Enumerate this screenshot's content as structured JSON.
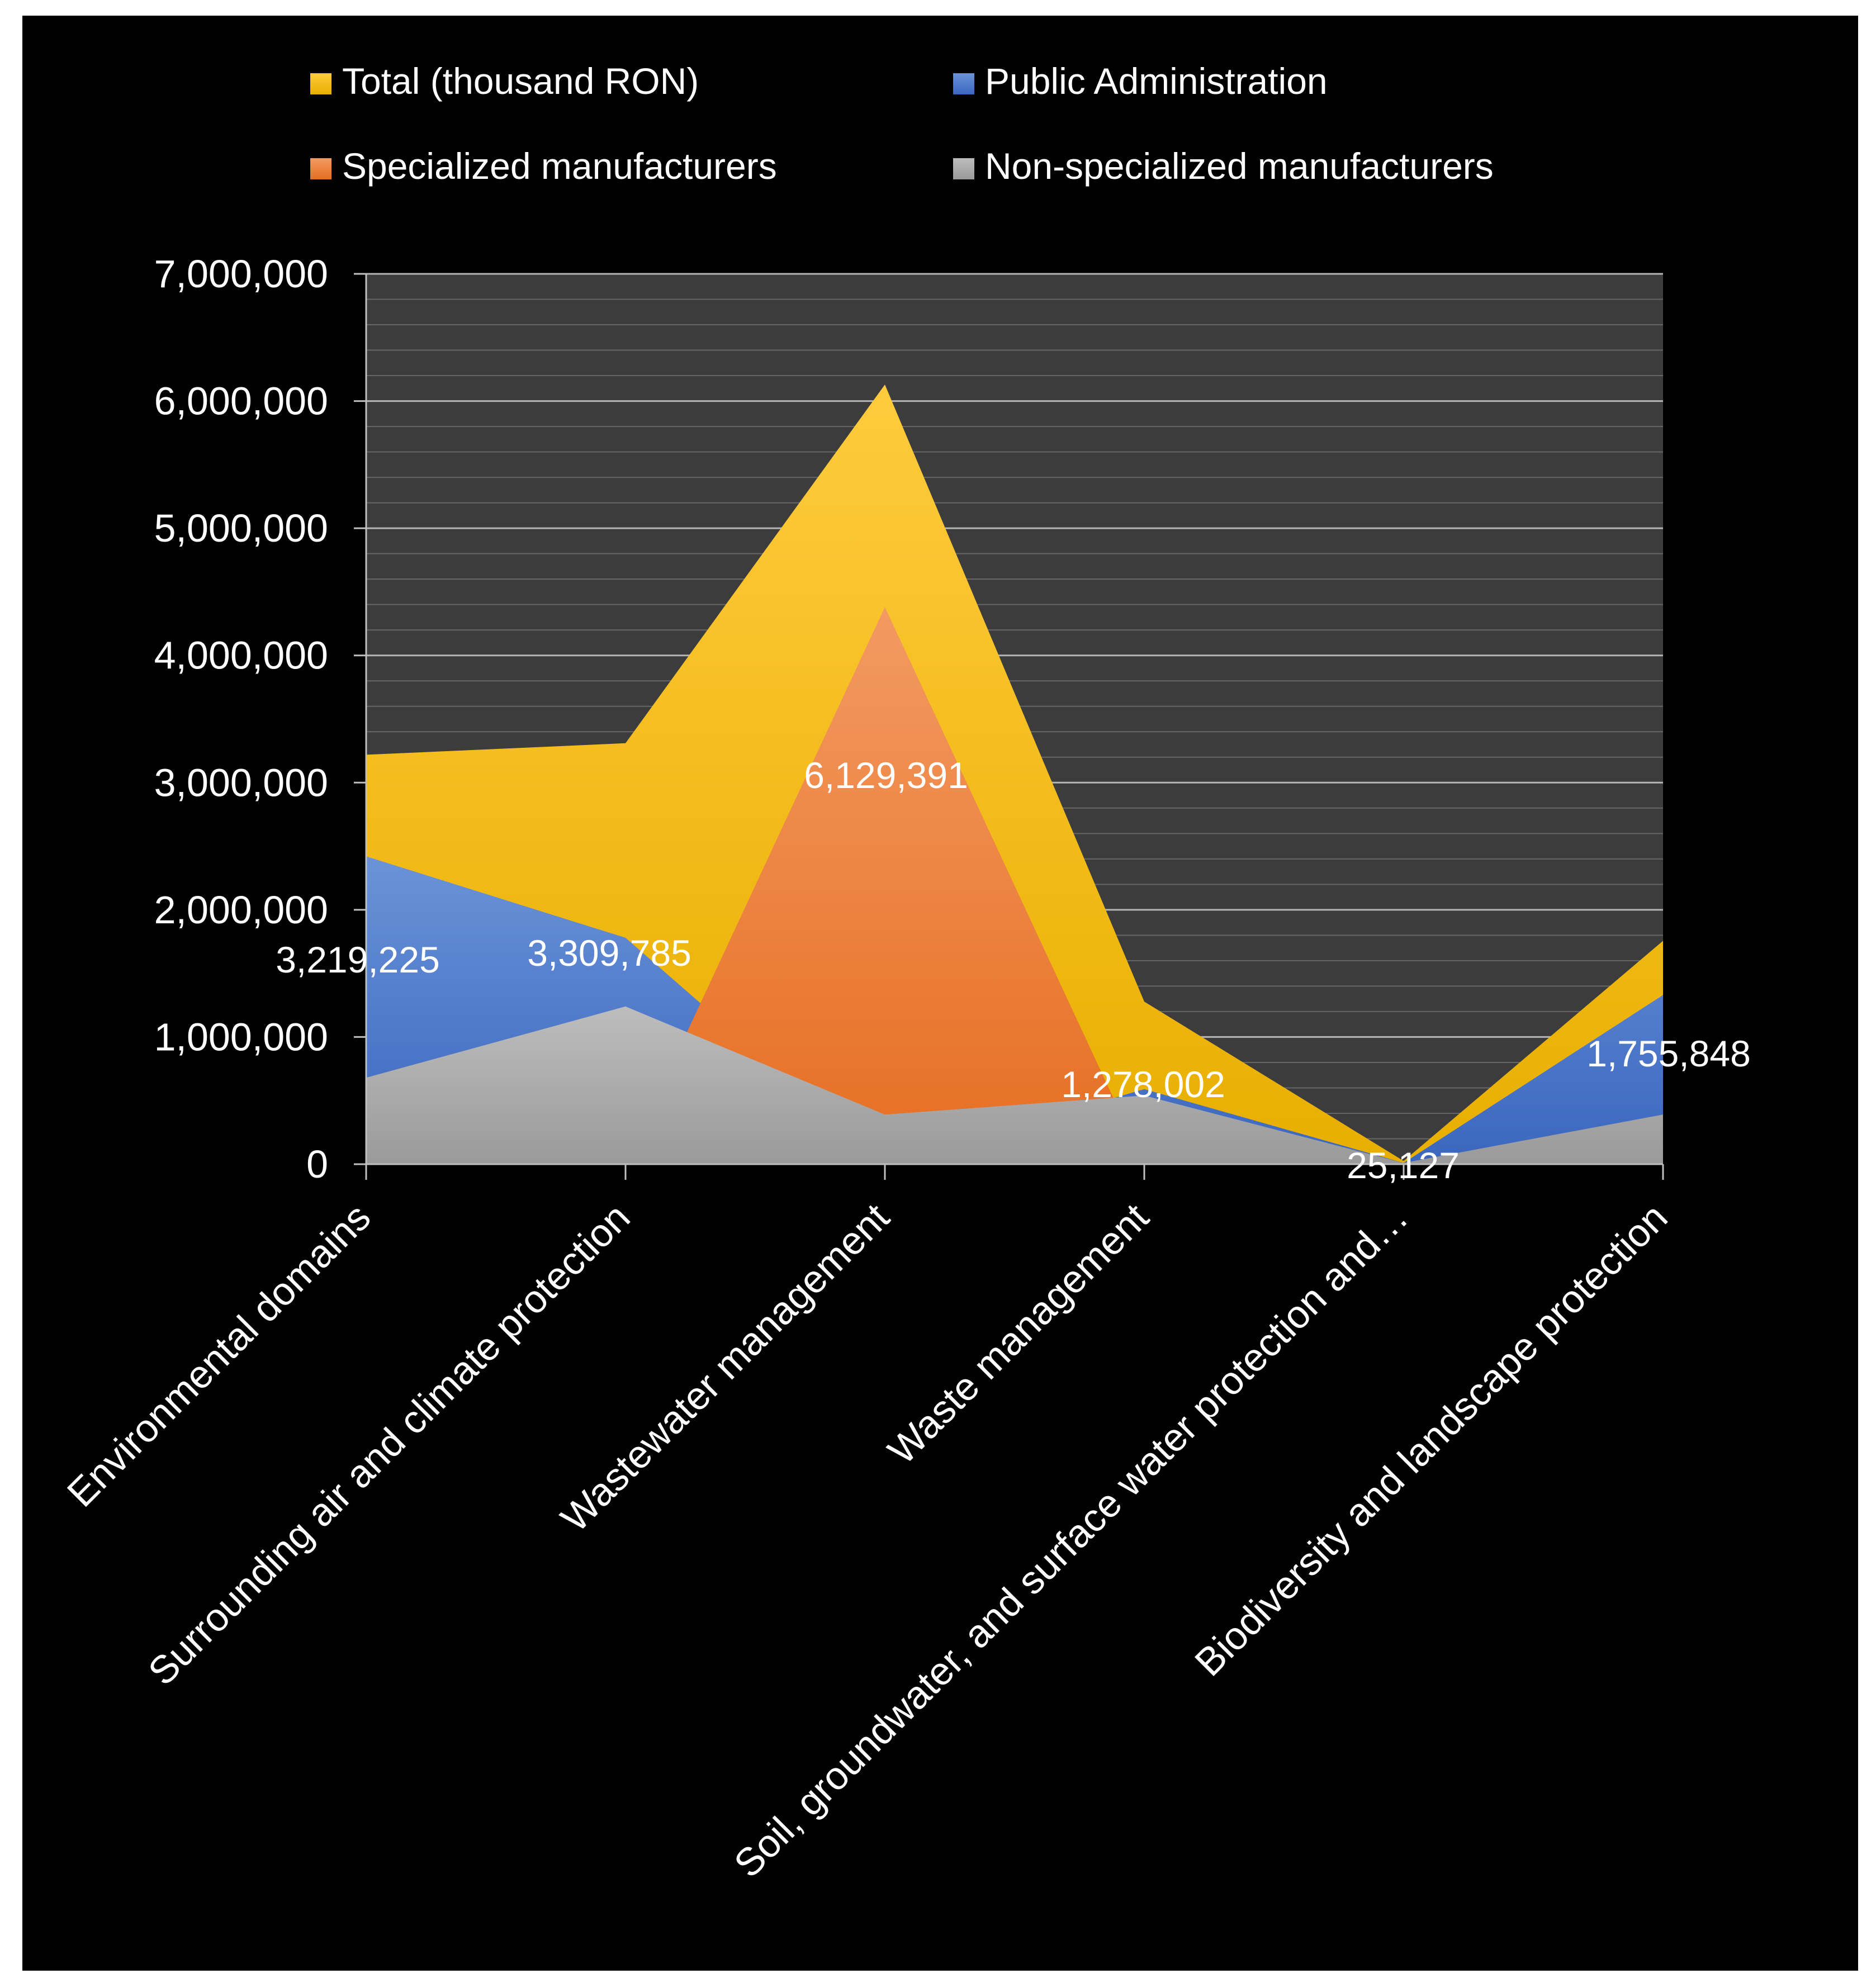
{
  "chart_data": {
    "type": "area",
    "title": "",
    "xlabel": "",
    "ylabel": "",
    "ylim": [
      0,
      7000000
    ],
    "y_ticks": [
      0,
      1000000,
      2000000,
      3000000,
      4000000,
      5000000,
      6000000,
      7000000
    ],
    "y_tick_labels": [
      "0",
      "1,000,000",
      "2,000,000",
      "3,000,000",
      "4,000,000",
      "5,000,000",
      "6,000,000",
      "7,000,000"
    ],
    "grid": true,
    "legend_position": "top",
    "categories": [
      "Environmental domains",
      "Surrounding air and climate protection",
      "Wastewater management",
      "Waste management",
      "Soil, groundwater, and surface water protection and…",
      "Biodiversity and landscape protection"
    ],
    "series": [
      {
        "name": "Total (thousand RON)",
        "color": "#FFC000",
        "values": [
          3219225,
          3309785,
          6129391,
          1278002,
          25127,
          1755848
        ]
      },
      {
        "name": "Public Administration",
        "color": "#4472C4",
        "values": [
          2420000,
          1780000,
          0,
          590000,
          10000,
          1330000
        ]
      },
      {
        "name": "Specialized manufacturers",
        "color": "#ED7D31",
        "values": [
          0,
          0,
          4380000,
          0,
          0,
          0
        ]
      },
      {
        "name": "Non-specialized manufacturers",
        "color": "#A5A5A5",
        "values": [
          680000,
          1240000,
          390000,
          540000,
          10000,
          390000
        ]
      }
    ],
    "data_labels": [
      "3,219,225",
      "3,309,785",
      "6,129,391",
      "1,278,002",
      "25,127",
      "1,755,848"
    ]
  }
}
